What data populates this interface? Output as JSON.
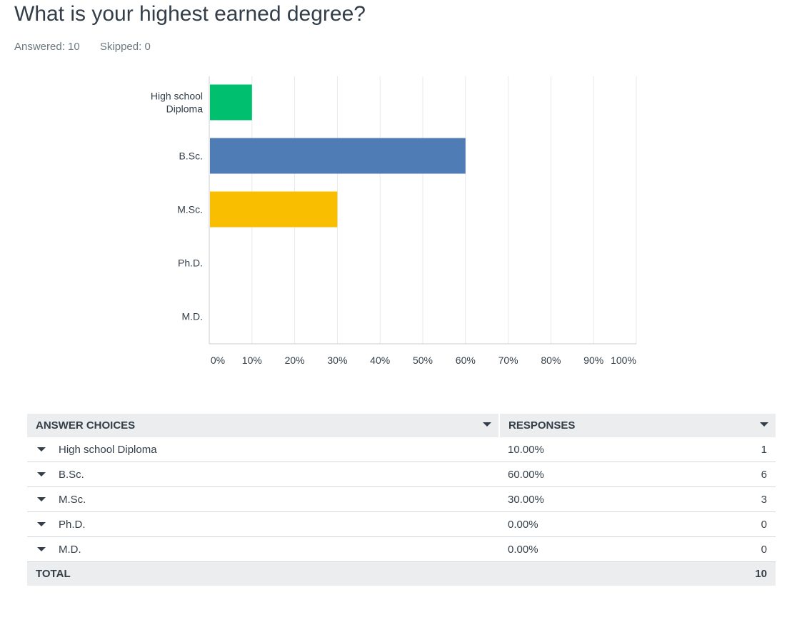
{
  "question": {
    "title": "What is your highest earned degree?",
    "answered_label": "Answered: 10",
    "skipped_label": "Skipped: 0"
  },
  "colors": {
    "green": "#00bf6f",
    "blue": "#507cb6",
    "yellow": "#f9be00",
    "grid": "#e6e9eb",
    "axis": "#c9cdd0"
  },
  "chart_data": {
    "type": "bar",
    "orientation": "horizontal",
    "categories": [
      "High school Diploma",
      "B.Sc.",
      "M.Sc.",
      "Ph.D.",
      "M.D."
    ],
    "category_lines": [
      [
        "High school",
        "Diploma"
      ],
      [
        "B.Sc."
      ],
      [
        "M.Sc."
      ],
      [
        "Ph.D."
      ],
      [
        "M.D."
      ]
    ],
    "values": [
      10,
      60,
      30,
      0,
      0
    ],
    "bar_colors": [
      "#00bf6f",
      "#507cb6",
      "#f9be00",
      "#00bf6f",
      "#00bf6f"
    ],
    "xlim": [
      0,
      100
    ],
    "xticks": [
      0,
      10,
      20,
      30,
      40,
      50,
      60,
      70,
      80,
      90,
      100
    ],
    "tick_labels": [
      "0%",
      "10%",
      "20%",
      "30%",
      "40%",
      "50%",
      "60%",
      "70%",
      "80%",
      "90%",
      "100%"
    ],
    "grid": true,
    "title": "",
    "xlabel": "",
    "ylabel": ""
  },
  "table": {
    "headers": {
      "choices": "ANSWER CHOICES",
      "responses": "RESPONSES"
    },
    "rows": [
      {
        "choice": "High school Diploma",
        "percent": "10.00%",
        "count": "1"
      },
      {
        "choice": "B.Sc.",
        "percent": "60.00%",
        "count": "6"
      },
      {
        "choice": "M.Sc.",
        "percent": "30.00%",
        "count": "3"
      },
      {
        "choice": "Ph.D.",
        "percent": "0.00%",
        "count": "0"
      },
      {
        "choice": "M.D.",
        "percent": "0.00%",
        "count": "0"
      }
    ],
    "total_label": "TOTAL",
    "total_count": "10"
  }
}
